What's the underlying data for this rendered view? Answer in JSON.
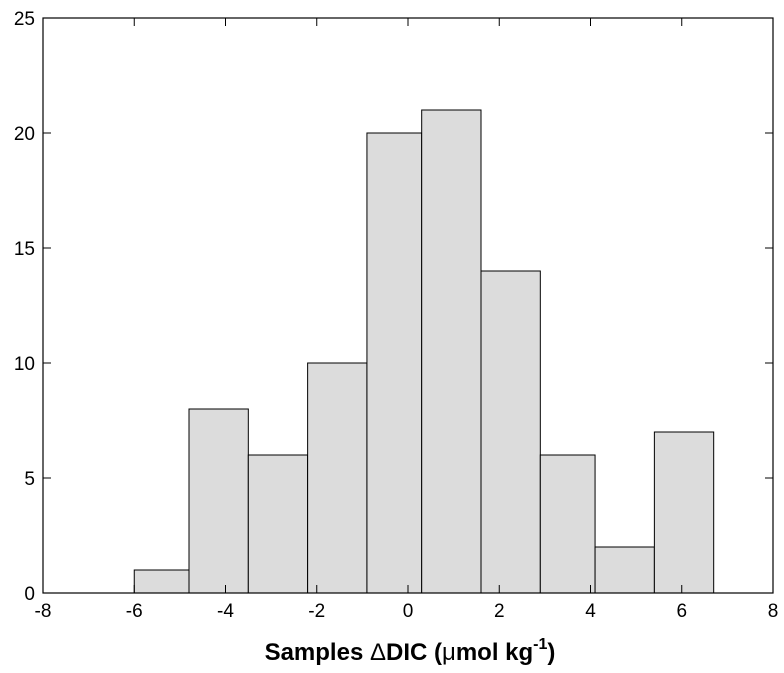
{
  "chart_data": {
    "type": "bar",
    "subtype": "histogram",
    "bins": [
      {
        "x0": -6.0,
        "x1": -4.8,
        "count": 1
      },
      {
        "x0": -4.8,
        "x1": -3.5,
        "count": 8
      },
      {
        "x0": -3.5,
        "x1": -2.2,
        "count": 6
      },
      {
        "x0": -2.2,
        "x1": -0.9,
        "count": 10
      },
      {
        "x0": -0.9,
        "x1": 0.3,
        "count": 20
      },
      {
        "x0": 0.3,
        "x1": 1.6,
        "count": 21
      },
      {
        "x0": 1.6,
        "x1": 2.9,
        "count": 14
      },
      {
        "x0": 2.9,
        "x1": 4.1,
        "count": 6
      },
      {
        "x0": 4.1,
        "x1": 5.4,
        "count": 2
      },
      {
        "x0": 5.4,
        "x1": 6.7,
        "count": 7
      }
    ],
    "xlabel": {
      "main": "Samples ",
      "delta": "Δ",
      "mid": "DIC (",
      "mu": "μ",
      "unit": "mol kg",
      "sup": "-1",
      "close": ")"
    },
    "ylabel": "",
    "xlim": [
      -8,
      8
    ],
    "ylim": [
      0,
      25
    ],
    "xticks": [
      "-8",
      "-6",
      "-4",
      "-2",
      "0",
      "2",
      "4",
      "6",
      "8"
    ],
    "yticks": [
      "0",
      "5",
      "10",
      "15",
      "20",
      "25"
    ],
    "grid": false,
    "bar_color": "#dcdcdc",
    "edge_color": "#000000"
  }
}
